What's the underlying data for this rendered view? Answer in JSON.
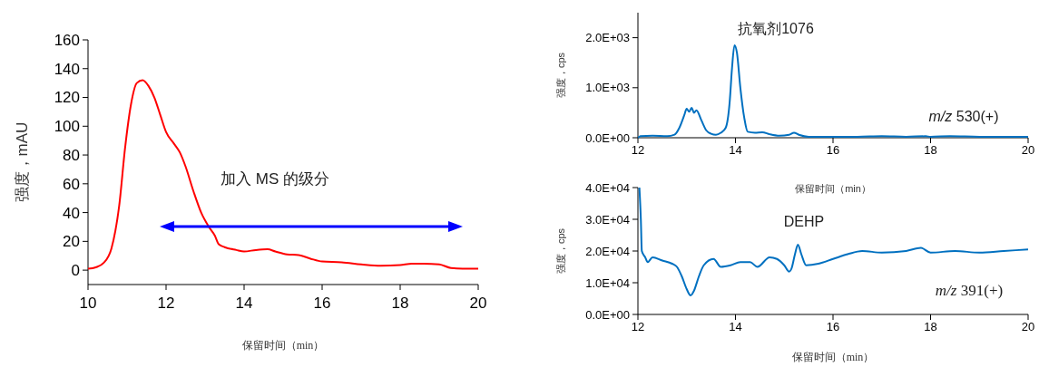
{
  "chart_data": [
    {
      "type": "line",
      "xlabel": "保留时间（min）",
      "ylabel": "强度，mAU",
      "xlim": [
        10,
        20
      ],
      "ylim": [
        -10,
        160
      ],
      "xticks": [
        10,
        12,
        14,
        16,
        18,
        20
      ],
      "yticks": [
        0,
        20,
        40,
        60,
        80,
        100,
        120,
        140,
        160
      ],
      "grid": false,
      "annotations": [
        "加入 MS 的级分"
      ],
      "series": [
        {
          "color": "#ff0000",
          "x": [
            10.0,
            10.2,
            10.4,
            10.6,
            10.8,
            10.95,
            11.1,
            11.25,
            11.4,
            11.55,
            11.7,
            11.85,
            12.0,
            12.2,
            12.35,
            12.5,
            12.7,
            12.9,
            13.1,
            13.25,
            13.35,
            13.5,
            13.8,
            14.0,
            14.3,
            14.6,
            14.8,
            15.1,
            15.4,
            15.7,
            16.0,
            16.5,
            17.0,
            17.5,
            18.0,
            18.3,
            18.6,
            19.0,
            19.3,
            19.6,
            20.0
          ],
          "values": [
            1,
            2,
            5,
            15,
            45,
            85,
            115,
            130,
            132,
            128,
            120,
            108,
            96,
            88,
            82,
            72,
            55,
            40,
            30,
            24,
            18,
            16,
            14,
            13,
            14,
            14.5,
            13,
            11,
            10.5,
            8,
            6,
            5.5,
            4,
            3,
            3.5,
            4.5,
            4.5,
            4,
            1.5,
            1,
            1
          ]
        }
      ]
    },
    {
      "type": "line",
      "xlabel": "保留时间（min）",
      "ylabel": "强度，cps",
      "xlim": [
        12,
        20
      ],
      "ylim": [
        0,
        2500
      ],
      "xticks": [
        12,
        14,
        16,
        18,
        20
      ],
      "yticks": [
        {
          "value": 0,
          "label": "0.0E+00"
        },
        {
          "value": 1000,
          "label": "1.0E+03"
        },
        {
          "value": 2000,
          "label": "2.0E+03"
        }
      ],
      "grid": false,
      "annotations": [
        "抗氧剂1076",
        "m/z 530(+)"
      ],
      "series": [
        {
          "color": "#0070c0",
          "x": [
            12.0,
            12.05,
            12.3,
            12.6,
            12.75,
            12.85,
            12.95,
            13.0,
            13.05,
            13.1,
            13.15,
            13.2,
            13.3,
            13.4,
            13.5,
            13.6,
            13.7,
            13.8,
            13.88,
            13.93,
            13.98,
            14.03,
            14.1,
            14.18,
            14.25,
            14.4,
            14.55,
            14.7,
            14.9,
            15.1,
            15.2,
            15.3,
            15.5,
            16.0,
            16.5,
            17.0,
            17.5,
            17.9,
            18.0,
            18.4,
            19.0,
            19.5,
            20.0
          ],
          "values": [
            0,
            30,
            40,
            30,
            60,
            200,
            450,
            580,
            520,
            600,
            500,
            550,
            350,
            150,
            80,
            60,
            100,
            200,
            700,
            1400,
            1850,
            1700,
            1000,
            400,
            120,
            100,
            110,
            70,
            40,
            60,
            100,
            60,
            20,
            20,
            20,
            30,
            20,
            30,
            20,
            30,
            20,
            20,
            20
          ]
        }
      ]
    },
    {
      "type": "line",
      "xlabel": "保留时间（min）",
      "ylabel": "强度，cps",
      "xlim": [
        12,
        20
      ],
      "ylim": [
        0,
        40000
      ],
      "xticks": [
        12,
        14,
        16,
        18,
        20
      ],
      "yticks": [
        {
          "value": 0,
          "label": "0.0E+00"
        },
        {
          "value": 10000,
          "label": "1.0E+04"
        },
        {
          "value": 20000,
          "label": "2.0E+04"
        },
        {
          "value": 30000,
          "label": "3.0E+04"
        },
        {
          "value": 40000,
          "label": "4.0E+04"
        }
      ],
      "grid": false,
      "annotations": [
        "DEHP",
        "m/z 391(+)"
      ],
      "series": [
        {
          "color": "#0070c0",
          "x": [
            12.03,
            12.06,
            12.08,
            12.15,
            12.2,
            12.3,
            12.5,
            12.7,
            12.8,
            12.9,
            13.0,
            13.08,
            13.15,
            13.25,
            13.35,
            13.55,
            13.7,
            13.9,
            14.1,
            14.3,
            14.45,
            14.7,
            14.85,
            15.0,
            15.1,
            15.15,
            15.22,
            15.28,
            15.35,
            15.45,
            15.7,
            16.0,
            16.3,
            16.6,
            17.0,
            17.5,
            17.8,
            18.0,
            18.5,
            19.0,
            19.5,
            20.0
          ],
          "values": [
            40000,
            30000,
            20000,
            18000,
            16500,
            18000,
            17000,
            16000,
            15000,
            12000,
            8000,
            6000,
            7500,
            12000,
            15500,
            17500,
            15000,
            15500,
            16500,
            16500,
            15000,
            18000,
            17500,
            15500,
            13500,
            14500,
            19000,
            22000,
            19000,
            15500,
            16000,
            17500,
            19000,
            20000,
            19500,
            20000,
            21000,
            19500,
            20000,
            19500,
            20000,
            20500
          ]
        }
      ]
    }
  ]
}
